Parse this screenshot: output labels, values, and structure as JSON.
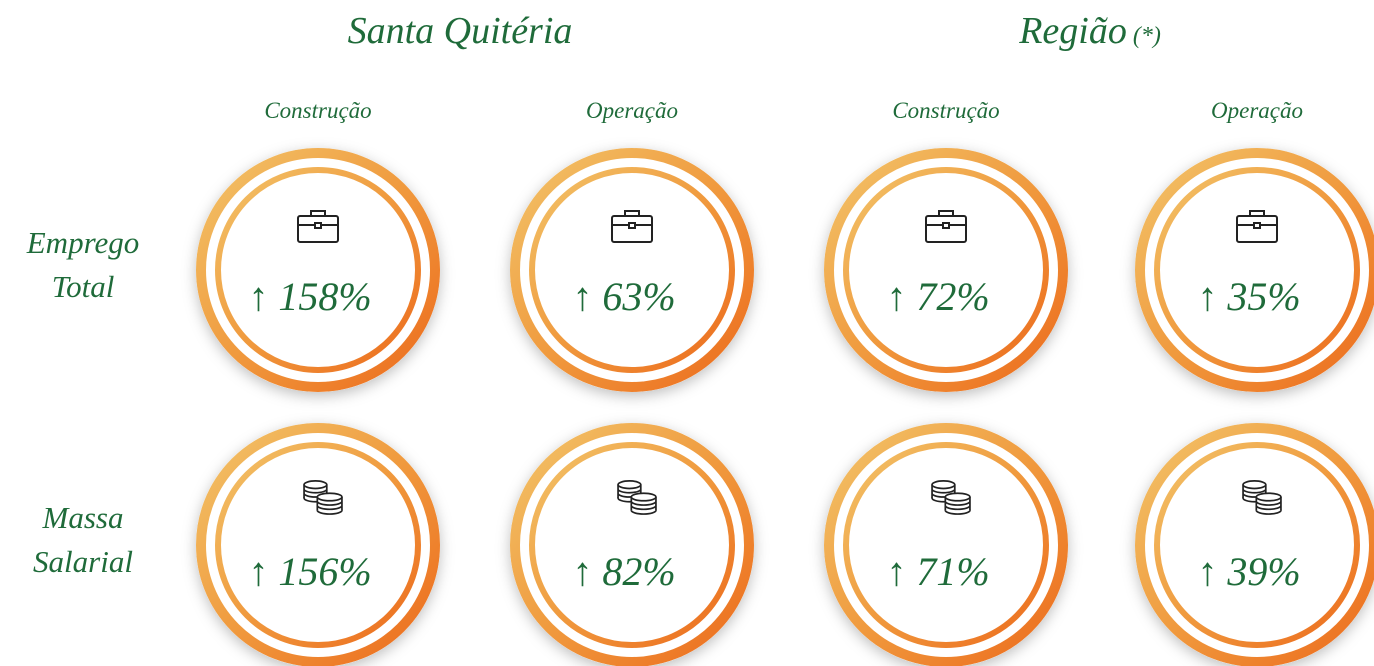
{
  "groups": [
    {
      "title": "Santa Quitéria",
      "note": null,
      "columns": [
        "Construção",
        "Operação"
      ]
    },
    {
      "title": "Região",
      "note": "(*)",
      "columns": [
        "Construção",
        "Operação"
      ]
    }
  ],
  "rows": [
    {
      "label": [
        "Emprego",
        "Total"
      ],
      "values": [
        "↑ 158%",
        "↑ 63%",
        "↑ 72%",
        "↑ 35%"
      ]
    },
    {
      "label": [
        "Massa",
        "Salarial"
      ],
      "values": [
        "↑ 156%",
        "↑ 82%",
        "↑ 71%",
        "↑ 39%"
      ]
    }
  ]
}
